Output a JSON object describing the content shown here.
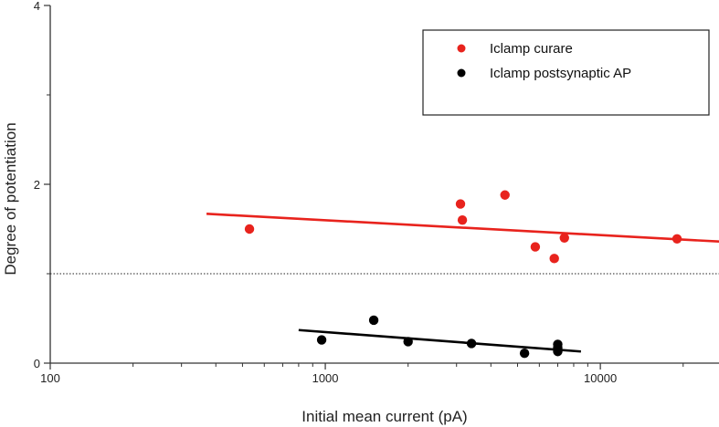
{
  "chart_data": {
    "type": "scatter",
    "xscale": "log",
    "xlim": [
      100,
      27000
    ],
    "ylim": [
      0,
      4
    ],
    "xlabel": "Initial mean current (pA)",
    "ylabel": "Degree of potentiation",
    "xticks": [
      {
        "value": 100,
        "label": "100"
      },
      {
        "value": 1000,
        "label": "1000"
      },
      {
        "value": 10000,
        "label": "10000"
      }
    ],
    "yticks": [
      {
        "value": 0,
        "label": "0"
      },
      {
        "value": 2,
        "label": "2"
      },
      {
        "value": 4,
        "label": "4"
      }
    ],
    "reference_line": {
      "y": 1,
      "style": "dotted"
    },
    "legend_position": "top-right",
    "series": [
      {
        "name": "Iclamp curare",
        "color": "#e8231d",
        "points": [
          {
            "x": 530,
            "y": 1.5
          },
          {
            "x": 3100,
            "y": 1.78
          },
          {
            "x": 3150,
            "y": 1.6
          },
          {
            "x": 4500,
            "y": 1.88
          },
          {
            "x": 5800,
            "y": 1.3
          },
          {
            "x": 6800,
            "y": 1.17
          },
          {
            "x": 7400,
            "y": 1.4
          },
          {
            "x": 19000,
            "y": 1.39
          }
        ],
        "fit": {
          "x": [
            370,
            27000
          ],
          "y": [
            1.67,
            1.36
          ]
        }
      },
      {
        "name": "Iclamp postsynaptic AP",
        "color": "#000000",
        "points": [
          {
            "x": 970,
            "y": 0.26
          },
          {
            "x": 1500,
            "y": 0.48
          },
          {
            "x": 2000,
            "y": 0.24
          },
          {
            "x": 3400,
            "y": 0.22
          },
          {
            "x": 5300,
            "y": 0.11
          },
          {
            "x": 7000,
            "y": 0.21
          },
          {
            "x": 7000,
            "y": 0.17
          },
          {
            "x": 7000,
            "y": 0.13
          }
        ],
        "fit": {
          "x": [
            800,
            8500
          ],
          "y": [
            0.37,
            0.13
          ]
        }
      }
    ]
  }
}
